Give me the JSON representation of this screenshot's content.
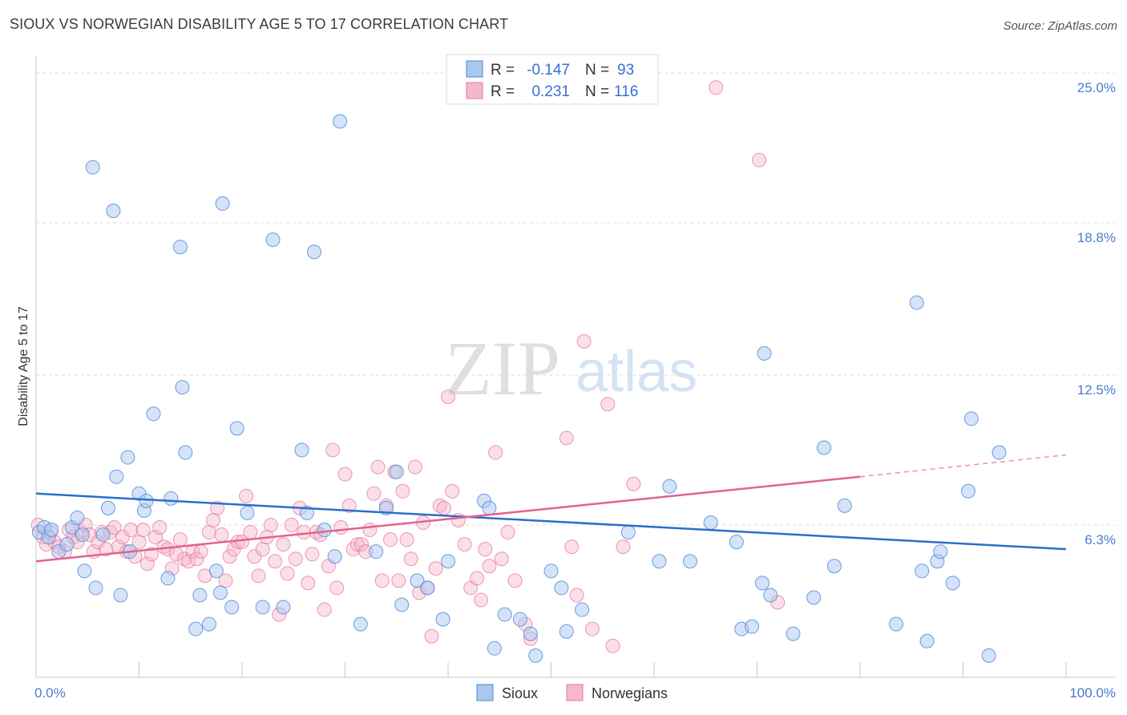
{
  "header": {
    "title": "SIOUX VS NORWEGIAN DISABILITY AGE 5 TO 17 CORRELATION CHART",
    "source": "Source: ZipAtlas.com"
  },
  "watermark": {
    "zip": "ZIP",
    "atlas": "atlas"
  },
  "legend": {
    "r_label": "R =",
    "n_label": "N =",
    "rows": [
      {
        "series": "Sioux",
        "r": "-0.147",
        "n": "93"
      },
      {
        "series": "Norwegians",
        "r": "0.231",
        "n": "116"
      }
    ]
  },
  "colors": {
    "sioux": "#4a86d8",
    "sioux_fill": "#a9c8f0",
    "norwegians": "#e8769c",
    "norwegians_fill": "#f5b8cb",
    "sioux_line": "#2a6fcc",
    "norwegians_line": "#e2638f"
  },
  "chart_data": {
    "type": "scatter",
    "title": "SIOUX VS NORWEGIAN DISABILITY AGE 5 TO 17 CORRELATION CHART",
    "xlabel": "",
    "ylabel": "Disability Age 5 to 17",
    "xlim": [
      0,
      100
    ],
    "ylim": [
      0,
      25.5
    ],
    "x_tick_labels": [
      {
        "value": 0,
        "label": "0.0%"
      },
      {
        "value": 100,
        "label": "100.0%"
      }
    ],
    "y_ticks": [
      {
        "value": 6.3,
        "label": "6.3%"
      },
      {
        "value": 12.5,
        "label": "12.5%"
      },
      {
        "value": 18.8,
        "label": "18.8%"
      },
      {
        "value": 25.0,
        "label": "25.0%"
      }
    ],
    "x_minor_ticks": [
      10,
      20,
      30,
      40,
      50,
      60,
      70,
      80,
      90,
      100
    ],
    "grid": true,
    "legend_position": "top-center",
    "series": [
      {
        "name": "Sioux",
        "r": -0.147,
        "n": 93,
        "trend": {
          "x": [
            0,
            100
          ],
          "y": [
            7.6,
            5.3
          ]
        },
        "points": [
          [
            0.3,
            6.0
          ],
          [
            0.8,
            6.2
          ],
          [
            1.2,
            5.8
          ],
          [
            1.5,
            6.1
          ],
          [
            2.2,
            5.2
          ],
          [
            3.0,
            5.5
          ],
          [
            3.5,
            6.2
          ],
          [
            4.0,
            6.6
          ],
          [
            4.5,
            5.9
          ],
          [
            4.7,
            4.4
          ],
          [
            5.5,
            21.1
          ],
          [
            5.8,
            3.7
          ],
          [
            6.5,
            5.9
          ],
          [
            7.0,
            7.0
          ],
          [
            7.5,
            19.3
          ],
          [
            7.8,
            8.3
          ],
          [
            8.2,
            3.4
          ],
          [
            8.9,
            9.1
          ],
          [
            9.1,
            5.2
          ],
          [
            10.0,
            7.6
          ],
          [
            10.5,
            6.9
          ],
          [
            10.7,
            7.3
          ],
          [
            11.4,
            10.9
          ],
          [
            12.8,
            4.1
          ],
          [
            13.1,
            7.4
          ],
          [
            14.0,
            17.8
          ],
          [
            14.2,
            12.0
          ],
          [
            14.5,
            9.3
          ],
          [
            15.5,
            2.0
          ],
          [
            15.9,
            3.4
          ],
          [
            16.8,
            2.2
          ],
          [
            17.5,
            4.4
          ],
          [
            17.9,
            3.5
          ],
          [
            18.1,
            19.6
          ],
          [
            19.0,
            2.9
          ],
          [
            19.5,
            10.3
          ],
          [
            20.5,
            6.8
          ],
          [
            22.0,
            2.9
          ],
          [
            23.0,
            18.1
          ],
          [
            24.0,
            2.9
          ],
          [
            25.8,
            9.4
          ],
          [
            26.3,
            6.8
          ],
          [
            27.0,
            17.6
          ],
          [
            28.0,
            6.1
          ],
          [
            29.0,
            5.0
          ],
          [
            29.5,
            23.0
          ],
          [
            31.5,
            2.2
          ],
          [
            33.0,
            5.2
          ],
          [
            34.0,
            7.0
          ],
          [
            35.0,
            8.5
          ],
          [
            35.5,
            3.0
          ],
          [
            37.0,
            4.0
          ],
          [
            38.0,
            3.7
          ],
          [
            39.5,
            2.4
          ],
          [
            40.0,
            4.8
          ],
          [
            43.5,
            7.3
          ],
          [
            44.0,
            7.0
          ],
          [
            44.5,
            1.2
          ],
          [
            45.5,
            2.6
          ],
          [
            47.0,
            2.4
          ],
          [
            48.0,
            1.8
          ],
          [
            48.5,
            0.9
          ],
          [
            50.0,
            4.4
          ],
          [
            51.0,
            3.7
          ],
          [
            51.5,
            1.9
          ],
          [
            53.0,
            2.8
          ],
          [
            57.5,
            6.0
          ],
          [
            60.5,
            4.8
          ],
          [
            61.5,
            7.9
          ],
          [
            63.5,
            4.8
          ],
          [
            65.5,
            6.4
          ],
          [
            68.0,
            5.6
          ],
          [
            68.5,
            2.0
          ],
          [
            69.5,
            2.1
          ],
          [
            70.5,
            3.9
          ],
          [
            70.7,
            13.4
          ],
          [
            71.3,
            3.4
          ],
          [
            73.5,
            1.8
          ],
          [
            75.5,
            3.3
          ],
          [
            76.5,
            9.5
          ],
          [
            77.5,
            4.6
          ],
          [
            78.5,
            7.1
          ],
          [
            83.5,
            2.2
          ],
          [
            85.5,
            15.5
          ],
          [
            86.0,
            4.4
          ],
          [
            86.5,
            1.5
          ],
          [
            87.5,
            4.8
          ],
          [
            87.8,
            5.2
          ],
          [
            89.0,
            3.9
          ],
          [
            90.5,
            7.7
          ],
          [
            90.8,
            10.7
          ],
          [
            92.5,
            0.9
          ],
          [
            93.5,
            9.3
          ]
        ]
      },
      {
        "name": "Norwegians",
        "r": 0.231,
        "n": 116,
        "trend": {
          "x": [
            0,
            80
          ],
          "y": [
            4.8,
            8.3
          ]
        },
        "trend_extension": {
          "x": [
            80,
            100
          ],
          "y": [
            8.3,
            9.2
          ]
        },
        "points": [
          [
            0.2,
            6.3
          ],
          [
            0.7,
            5.8
          ],
          [
            1.0,
            5.5
          ],
          [
            1.4,
            6.0
          ],
          [
            1.8,
            5.6
          ],
          [
            2.2,
            5.4
          ],
          [
            2.8,
            5.2
          ],
          [
            3.2,
            6.1
          ],
          [
            3.6,
            5.8
          ],
          [
            4.0,
            5.6
          ],
          [
            4.4,
            6.0
          ],
          [
            4.8,
            6.3
          ],
          [
            5.2,
            5.9
          ],
          [
            5.6,
            5.2
          ],
          [
            6.0,
            5.6
          ],
          [
            6.4,
            6.0
          ],
          [
            6.8,
            5.3
          ],
          [
            7.2,
            6.0
          ],
          [
            7.6,
            6.2
          ],
          [
            8.0,
            5.4
          ],
          [
            8.4,
            5.8
          ],
          [
            8.8,
            5.2
          ],
          [
            9.2,
            6.1
          ],
          [
            9.6,
            5.0
          ],
          [
            10.0,
            5.6
          ],
          [
            10.4,
            6.1
          ],
          [
            10.8,
            4.7
          ],
          [
            11.2,
            5.1
          ],
          [
            11.6,
            5.8
          ],
          [
            12.0,
            6.2
          ],
          [
            12.4,
            5.4
          ],
          [
            12.8,
            5.3
          ],
          [
            13.2,
            4.5
          ],
          [
            13.6,
            5.1
          ],
          [
            14.0,
            5.7
          ],
          [
            14.4,
            4.9
          ],
          [
            14.8,
            4.8
          ],
          [
            15.2,
            5.2
          ],
          [
            15.6,
            4.9
          ],
          [
            16.0,
            5.2
          ],
          [
            16.4,
            4.2
          ],
          [
            16.8,
            6.0
          ],
          [
            17.2,
            6.5
          ],
          [
            17.6,
            7.0
          ],
          [
            18.0,
            5.9
          ],
          [
            18.4,
            4.0
          ],
          [
            18.8,
            5.0
          ],
          [
            19.2,
            5.3
          ],
          [
            19.6,
            5.6
          ],
          [
            20.0,
            5.6
          ],
          [
            20.4,
            7.5
          ],
          [
            20.8,
            6.0
          ],
          [
            21.2,
            5.0
          ],
          [
            21.6,
            4.2
          ],
          [
            22.0,
            5.3
          ],
          [
            22.4,
            5.8
          ],
          [
            22.8,
            6.3
          ],
          [
            23.2,
            4.8
          ],
          [
            23.6,
            2.6
          ],
          [
            24.0,
            5.5
          ],
          [
            24.4,
            4.3
          ],
          [
            24.8,
            6.3
          ],
          [
            25.2,
            4.9
          ],
          [
            25.6,
            7.0
          ],
          [
            26.0,
            6.0
          ],
          [
            26.4,
            3.9
          ],
          [
            26.8,
            5.1
          ],
          [
            27.2,
            6.0
          ],
          [
            27.6,
            5.9
          ],
          [
            28.0,
            2.8
          ],
          [
            28.4,
            4.6
          ],
          [
            28.8,
            9.4
          ],
          [
            29.2,
            3.7
          ],
          [
            29.6,
            6.2
          ],
          [
            30.0,
            8.4
          ],
          [
            30.4,
            7.1
          ],
          [
            30.8,
            5.3
          ],
          [
            31.2,
            5.5
          ],
          [
            31.6,
            5.5
          ],
          [
            32.0,
            5.2
          ],
          [
            32.4,
            6.1
          ],
          [
            32.8,
            7.6
          ],
          [
            33.2,
            8.7
          ],
          [
            33.6,
            4.0
          ],
          [
            34.0,
            7.1
          ],
          [
            34.4,
            5.7
          ],
          [
            34.8,
            8.5
          ],
          [
            35.2,
            4.0
          ],
          [
            35.6,
            7.7
          ],
          [
            36.0,
            5.7
          ],
          [
            36.4,
            4.9
          ],
          [
            36.8,
            8.7
          ],
          [
            37.2,
            3.5
          ],
          [
            37.6,
            6.4
          ],
          [
            38.0,
            3.7
          ],
          [
            38.4,
            1.7
          ],
          [
            38.8,
            4.5
          ],
          [
            39.2,
            7.1
          ],
          [
            39.6,
            7.0
          ],
          [
            40.0,
            11.6
          ],
          [
            40.4,
            7.7
          ],
          [
            41.0,
            6.5
          ],
          [
            41.6,
            5.5
          ],
          [
            42.2,
            3.7
          ],
          [
            42.8,
            4.1
          ],
          [
            43.2,
            3.2
          ],
          [
            43.6,
            5.3
          ],
          [
            44.0,
            4.6
          ],
          [
            44.6,
            9.3
          ],
          [
            45.2,
            4.9
          ],
          [
            45.8,
            6.0
          ],
          [
            47.5,
            2.2
          ],
          [
            48.0,
            1.6
          ],
          [
            51.5,
            9.9
          ],
          [
            52.5,
            3.4
          ],
          [
            53.2,
            13.9
          ]
        ]
      }
    ],
    "extra_points_norwegians": [
      [
        66.0,
        24.4
      ],
      [
        70.2,
        21.4
      ],
      [
        55.5,
        11.3
      ],
      [
        52.0,
        5.4
      ],
      [
        54.0,
        2.0
      ],
      [
        56.0,
        1.3
      ],
      [
        57.0,
        5.4
      ],
      [
        72.0,
        3.1
      ],
      [
        58.0,
        8.0
      ],
      [
        46.5,
        4.0
      ]
    ]
  },
  "bottom_legend": [
    {
      "label": "Sioux"
    },
    {
      "label": "Norwegians"
    }
  ]
}
